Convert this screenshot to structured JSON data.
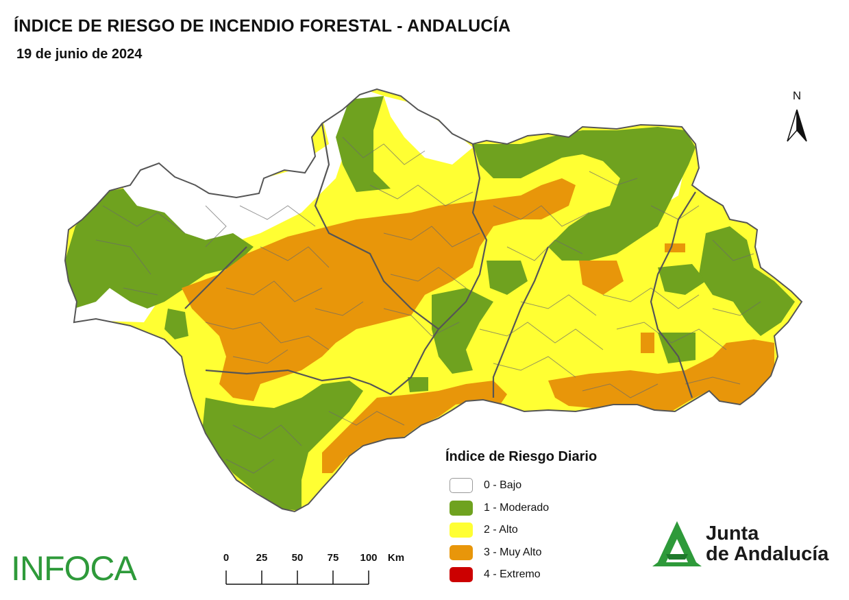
{
  "title": "ÍNDICE DE RIESGO DE INCENDIO FORESTAL - ANDALUCÍA",
  "date": "19 de junio de 2024",
  "north_label": "N",
  "legend": {
    "title": "Índice de Riesgo Diario",
    "items": [
      {
        "label": "0 - Bajo",
        "color": "#ffffff"
      },
      {
        "label": "1 - Moderado",
        "color": "#6fa21f"
      },
      {
        "label": "2 - Alto",
        "color": "#ffff33"
      },
      {
        "label": "3 - Muy Alto",
        "color": "#e8960a"
      },
      {
        "label": "4 - Extremo",
        "color": "#cc0000"
      }
    ]
  },
  "scale": {
    "ticks": [
      "0",
      "25",
      "50",
      "75",
      "100"
    ],
    "unit": "Km"
  },
  "logos": {
    "infoca": "INFOCA",
    "junta_line1": "Junta",
    "junta_line2": "de Andalucía",
    "infoca_color": "#2e9a3a",
    "junta_color": "#2e9a3a"
  },
  "colors": {
    "bajo": "#ffffff",
    "moderado": "#6fa21f",
    "alto": "#ffff33",
    "muy_alto": "#e8960a",
    "border": "#6a6a6a"
  }
}
